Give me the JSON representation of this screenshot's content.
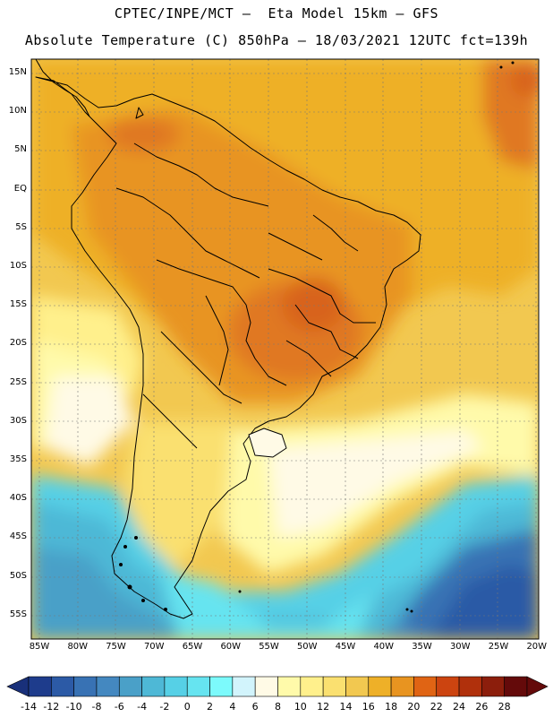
{
  "title_line1": "CPTEC/INPE/MCT –  Eta Model 15km – GFS",
  "title_line2": "Absolute Temperature (C) 850hPa – 18/03/2021 12UTC fct=139h",
  "lat_labels": [
    "15N",
    "10N",
    "5N",
    "EQ",
    "5S",
    "10S",
    "15S",
    "20S",
    "25S",
    "30S",
    "35S",
    "40S",
    "45S",
    "50S",
    "55S"
  ],
  "lon_labels": [
    "85W",
    "80W",
    "75W",
    "70W",
    "65W",
    "60W",
    "55W",
    "50W",
    "45W",
    "40W",
    "35W",
    "30W",
    "25W",
    "20W"
  ],
  "colorbar": {
    "labels": [
      "-14",
      "-12",
      "-10",
      "-8",
      "-6",
      "-4",
      "-2",
      "0",
      "2",
      "4",
      "6",
      "8",
      "10",
      "12",
      "14",
      "16",
      "18",
      "20",
      "22",
      "24",
      "26",
      "28"
    ],
    "colors": [
      "#1e3c8c",
      "#2c5aa6",
      "#3872b4",
      "#4488c0",
      "#4aa0c8",
      "#4eb8d6",
      "#56d0e6",
      "#66e4f0",
      "#7cfafc",
      "#d2f4fc",
      "#fffae6",
      "#fffaaa",
      "#fff08c",
      "#fae070",
      "#f2c850",
      "#eeb028",
      "#e89420",
      "#e06414",
      "#cc4410",
      "#b0300c",
      "#8c1e0c",
      "#640a0a"
    ],
    "under_color": "#19307a",
    "over_color": "#640a0a"
  }
}
